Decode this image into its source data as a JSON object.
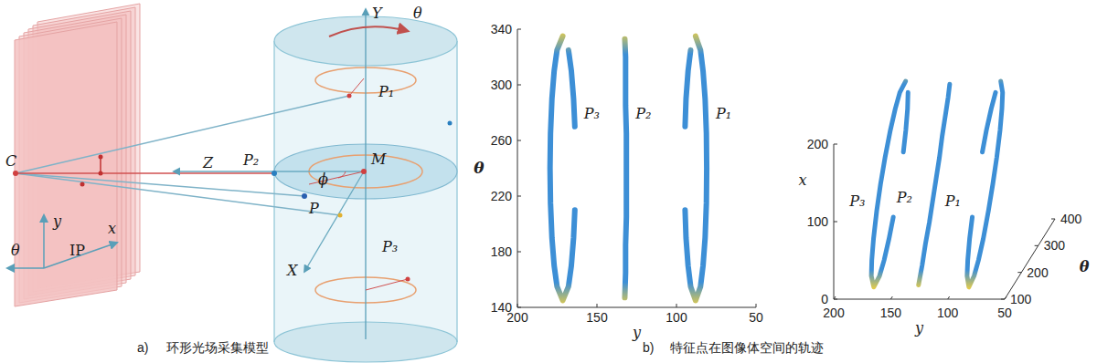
{
  "panel_a": {
    "labels": {
      "C": "C",
      "Y": "Y",
      "theta": "θ",
      "P1": "P₁",
      "P2": "P₂",
      "P3": "P₃",
      "Z": "Z",
      "M": "M",
      "phi": "ϕ",
      "P": "P",
      "X": "X",
      "ip_y": "y",
      "ip_x": "x",
      "ip_theta": "θ",
      "IP": "IP"
    },
    "caption_tag": "a)",
    "caption": "环形光场采集模型"
  },
  "panel_b": {
    "caption_tag": "b)",
    "caption": "特征点在图像体空间的轨迹"
  },
  "chart_data": [
    {
      "type": "line",
      "xlabel": "y",
      "ylabel": "θ",
      "xlim": [
        200,
        50
      ],
      "ylim": [
        140,
        340
      ],
      "xticks": [
        200,
        150,
        100,
        50
      ],
      "yticks": [
        140,
        180,
        220,
        260,
        300,
        340
      ],
      "grid": false,
      "series": [
        {
          "name": "P₃",
          "color": "#3d8fd6",
          "x": [
            171.5,
            175.1,
            176.9,
            178.3,
            179.2,
            179.5,
            179.2,
            178.3,
            176.9,
            175.1,
            171.5,
            167.9,
            166.1,
            164.7,
            163.9,
            null,
            163.9,
            164.7,
            166.1,
            167.9
          ],
          "values": [
            335,
            325,
            310,
            290,
            265,
            240,
            215,
            190,
            170,
            155,
            145,
            155,
            170,
            190,
            210,
            null,
            270,
            290,
            310,
            325
          ]
        },
        {
          "name": "P₂",
          "color": "#3d8fd6",
          "x": [
            132.5,
            132,
            132,
            131.5,
            131.5,
            131.5,
            131.5,
            132,
            132,
            132,
            132.5
          ],
          "values": [
            147,
            165,
            185,
            205,
            225,
            245,
            265,
            285,
            305,
            320,
            333
          ]
        },
        {
          "name": "P₁",
          "color": "#3d8fd6",
          "x": [
            88,
            84.9,
            83.3,
            82,
            81.2,
            81,
            81.2,
            82,
            83.3,
            84.9,
            88,
            91.1,
            92.7,
            94,
            94.6,
            null,
            94.6,
            94,
            92.7,
            91.1
          ],
          "values": [
            335,
            325,
            310,
            290,
            265,
            240,
            215,
            190,
            170,
            155,
            145,
            155,
            170,
            190,
            210,
            null,
            270,
            290,
            310,
            325
          ]
        }
      ]
    },
    {
      "type": "line3d",
      "xlabel": "y",
      "zlabel": "θ",
      "ylabel": "x",
      "xlim": [
        200,
        50
      ],
      "zlim": [
        100,
        400
      ],
      "ylim": [
        0,
        200
      ],
      "xticks": [
        200,
        150,
        100,
        50
      ],
      "zticks": [
        100,
        200,
        300,
        400
      ],
      "yticks": [
        0,
        100,
        200
      ],
      "grid": false,
      "series": [
        {
          "name": "P₃",
          "color": "#3d8fd6",
          "x": [
            171.5,
            175.1,
            176.9,
            178.3,
            179.2,
            179.5,
            179.2,
            178.3,
            176.9,
            175.1,
            171.5,
            167.9,
            166.1,
            164.7,
            163.9,
            null,
            163.9,
            164.7,
            166.1,
            167.9
          ],
          "z": [
            335,
            325,
            310,
            290,
            265,
            240,
            215,
            190,
            170,
            155,
            145,
            155,
            170,
            190,
            210,
            null,
            270,
            290,
            310,
            325
          ],
          "values": [
            200,
            189,
            173,
            152,
            126,
            100,
            74,
            47,
            26,
            11,
            0,
            11,
            26,
            47,
            68,
            null,
            131,
            152,
            173,
            189
          ]
        },
        {
          "name": "P₂",
          "color": "#3d8fd6",
          "x": [
            132.5,
            132,
            132,
            131.5,
            131.5,
            131.5,
            131.5,
            132,
            132,
            132,
            132.5
          ],
          "z": [
            147,
            165,
            185,
            205,
            225,
            245,
            265,
            285,
            305,
            320,
            333
          ],
          "values": [
            2,
            21,
            42,
            63,
            84,
            105,
            126,
            147,
            168,
            184,
            197
          ]
        },
        {
          "name": "P₁",
          "color": "#3d8fd6",
          "x": [
            88,
            84.9,
            83.3,
            82,
            81.2,
            81,
            81.2,
            82,
            83.3,
            84.9,
            88,
            91.1,
            92.7,
            94,
            94.6,
            null,
            94.6,
            94,
            92.7,
            91.1
          ],
          "z": [
            335,
            325,
            310,
            290,
            265,
            240,
            215,
            190,
            170,
            155,
            145,
            155,
            170,
            190,
            210,
            null,
            270,
            290,
            310,
            325
          ],
          "values": [
            200,
            189,
            173,
            152,
            126,
            100,
            74,
            47,
            26,
            11,
            0,
            11,
            26,
            47,
            68,
            null,
            131,
            152,
            173,
            189
          ]
        }
      ]
    }
  ]
}
